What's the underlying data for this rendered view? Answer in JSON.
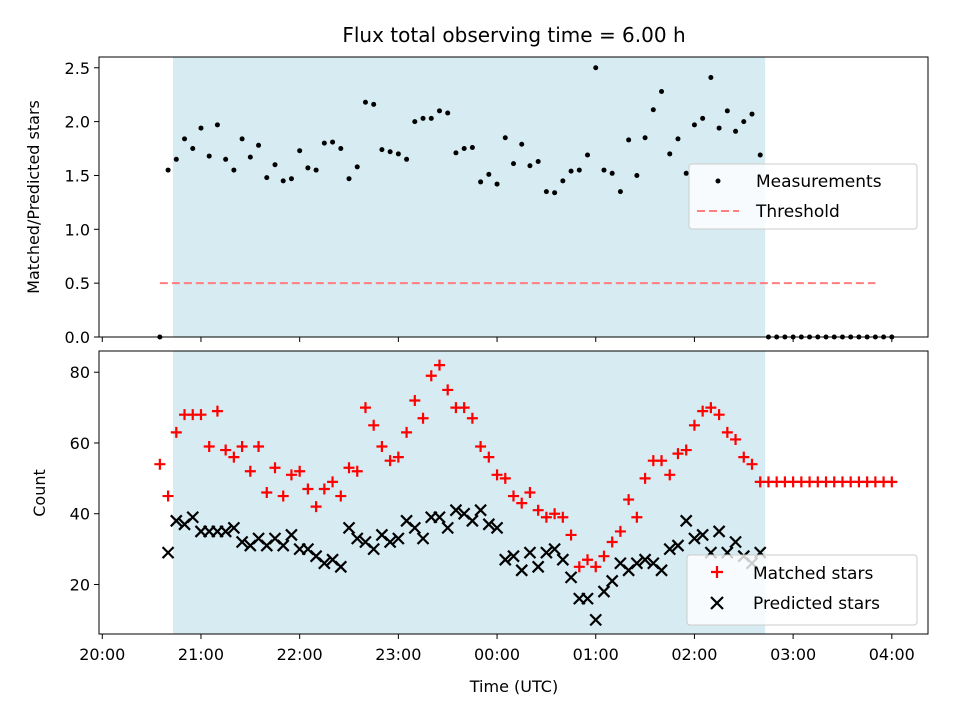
{
  "figure": {
    "title": "Flux total observing time = 6.00 h",
    "xlabel": "Time (UTC)"
  },
  "colors": {
    "shade": "#add8e6",
    "measurements": "#000000",
    "threshold": "#ff7f7f",
    "matched": "#ff0000",
    "predicted": "#000000"
  },
  "chart_data": [
    {
      "type": "scatter",
      "ylabel": "Matched/Predicted stars",
      "xlim": [
        "20:00",
        "04:00"
      ],
      "ylim": [
        0,
        2.6
      ],
      "yticks": [
        0.0,
        0.5,
        1.0,
        1.5,
        2.0,
        2.5
      ],
      "ytick_labels": [
        "0.0",
        "0.5",
        "1.0",
        "1.5",
        "2.0",
        "2.5"
      ],
      "shaded_span": [
        "20:43",
        "02:43"
      ],
      "legend_position": "center-right",
      "threshold": {
        "name": "Threshold",
        "value": 0.5,
        "x_range": [
          "20:35",
          "03:50"
        ]
      },
      "series": [
        {
          "name": "Measurements",
          "x_start": "20:35",
          "x_step_minutes": 5,
          "values": [
            0.0,
            1.55,
            1.65,
            1.84,
            1.75,
            1.94,
            1.68,
            1.97,
            1.65,
            1.55,
            1.84,
            1.67,
            1.78,
            1.48,
            1.6,
            1.45,
            1.47,
            1.73,
            1.57,
            1.55,
            1.8,
            1.81,
            1.75,
            1.47,
            1.58,
            2.18,
            2.16,
            1.74,
            1.72,
            1.7,
            1.65,
            2.0,
            2.03,
            2.03,
            2.1,
            2.08,
            1.71,
            1.75,
            1.76,
            1.44,
            1.51,
            1.42,
            1.85,
            1.61,
            1.79,
            1.59,
            1.63,
            1.35,
            1.34,
            1.45,
            1.54,
            1.55,
            1.69,
            2.5,
            1.55,
            1.52,
            1.35,
            1.83,
            1.5,
            1.85,
            2.11,
            2.28,
            1.7,
            1.84,
            1.52,
            1.97,
            2.03,
            2.41,
            1.94,
            2.1,
            1.91,
            2.0,
            2.07,
            1.69,
            0.0,
            0.0,
            0.0,
            0.0,
            0.0,
            0.0,
            0.0,
            0.0,
            0.0,
            0.0,
            0.0,
            0.0,
            0.0,
            0.0,
            0.0,
            0.0
          ]
        }
      ]
    },
    {
      "type": "scatter",
      "ylabel": "Count",
      "xlim": [
        "20:00",
        "04:00"
      ],
      "ylim": [
        6,
        86
      ],
      "yticks": [
        20,
        40,
        60,
        80
      ],
      "ytick_labels": [
        "20",
        "40",
        "60",
        "80"
      ],
      "xticks": [
        "20:00",
        "21:00",
        "22:00",
        "23:00",
        "00:00",
        "01:00",
        "02:00",
        "03:00",
        "04:00"
      ],
      "shaded_span": [
        "20:43",
        "02:43"
      ],
      "legend_position": "lower-right",
      "series": [
        {
          "name": "Matched stars",
          "x_start": "20:35",
          "x_step_minutes": 5,
          "values": [
            54,
            45,
            63,
            68,
            68,
            68,
            59,
            69,
            58,
            56,
            59,
            52,
            59,
            46,
            53,
            45,
            51,
            52,
            47,
            42,
            47,
            49,
            45,
            53,
            52,
            70,
            65,
            59,
            55,
            56,
            63,
            72,
            67,
            79,
            82,
            75,
            70,
            70,
            67,
            59,
            56,
            51,
            50,
            45,
            43,
            46,
            41,
            39,
            40,
            39,
            34,
            25,
            27,
            25,
            28,
            32,
            35,
            44,
            39,
            50,
            55,
            55,
            51,
            57,
            58,
            65,
            69,
            70,
            68,
            63,
            61,
            56,
            54,
            49,
            49,
            49,
            49,
            49,
            49,
            49,
            49,
            49,
            49,
            49,
            49,
            49,
            49,
            49,
            49,
            49
          ]
        },
        {
          "name": "Predicted stars",
          "x_start": "20:40",
          "x_step_minutes": 5,
          "values": [
            29,
            38,
            37,
            39,
            35,
            35,
            35,
            35,
            36,
            32,
            31,
            33,
            31,
            33,
            31,
            34,
            30,
            30,
            28,
            26,
            27,
            25,
            36,
            33,
            32,
            30,
            34,
            32,
            33,
            38,
            36,
            33,
            39,
            39,
            36,
            41,
            40,
            38,
            41,
            37,
            36,
            27,
            28,
            24,
            29,
            25,
            29,
            30,
            27,
            22,
            16,
            16,
            10,
            18,
            21,
            26,
            24,
            26,
            27,
            26,
            24,
            30,
            31,
            38,
            33,
            34,
            29,
            35,
            29,
            32,
            28,
            26,
            29
          ]
        }
      ]
    }
  ]
}
